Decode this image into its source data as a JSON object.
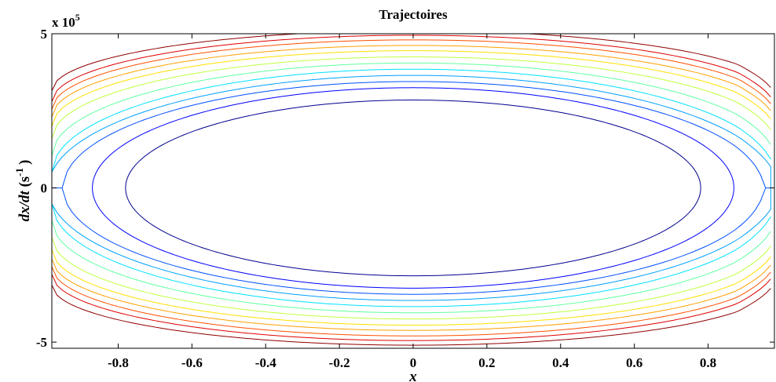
{
  "chart_data": {
    "type": "line",
    "title": "Trajectoires",
    "xlabel": "x",
    "ylabel": {
      "var": "dx/dt",
      "unit_open": " (s",
      "unit_exp": "-1",
      "unit_close": ")"
    },
    "y_multiplier": {
      "base": "x 10",
      "exp": "5"
    },
    "xlim": [
      -0.98,
      0.98
    ],
    "ylim": [
      -5.2,
      5.0
    ],
    "x_ticks": [
      {
        "value": -0.8,
        "label": "-0.8"
      },
      {
        "value": -0.6,
        "label": "-0.6"
      },
      {
        "value": -0.4,
        "label": "-0.4"
      },
      {
        "value": -0.2,
        "label": "-0.2"
      },
      {
        "value": 0,
        "label": "0"
      },
      {
        "value": 0.2,
        "label": "0.2"
      },
      {
        "value": 0.4,
        "label": "0.4"
      },
      {
        "value": 0.6,
        "label": "0.6"
      },
      {
        "value": 0.8,
        "label": "0.8"
      }
    ],
    "y_ticks": [
      {
        "value": 5,
        "label": "5"
      },
      {
        "value": 0,
        "label": "0"
      },
      {
        "value": -5,
        "label": "-5"
      }
    ],
    "grid": false,
    "legend": "none",
    "x_wall": 0.97,
    "curves_note_units": "y in units of 1e5 s^-1",
    "series": [
      {
        "type": "closed",
        "x_intercept": 0.78,
        "y_max": 2.85,
        "color": "#00008f"
      },
      {
        "type": "closed",
        "x_intercept": 0.87,
        "y_max": 3.25,
        "color": "#0000ff"
      },
      {
        "type": "open",
        "x_min": 0.95,
        "y_max": 3.45,
        "color": "#0050ff"
      },
      {
        "type": "open",
        "x_min": 0.99,
        "y_max": 3.65,
        "color": "#00a0ff"
      },
      {
        "type": "open",
        "y_edge": 0.5,
        "y_max": 3.85,
        "color": "#00e0ff"
      },
      {
        "type": "open",
        "y_edge": 1.05,
        "y_max": 4.05,
        "color": "#60ffa0"
      },
      {
        "type": "open",
        "y_edge": 1.6,
        "y_max": 4.25,
        "color": "#c0ff40"
      },
      {
        "type": "open",
        "y_edge": 2.0,
        "y_max": 4.45,
        "color": "#ffe000"
      },
      {
        "type": "open",
        "y_edge": 2.3,
        "y_max": 4.62,
        "color": "#ffa000"
      },
      {
        "type": "open",
        "y_edge": 2.55,
        "y_max": 4.8,
        "color": "#ff5000"
      },
      {
        "type": "open",
        "y_edge": 2.8,
        "y_max": 4.95,
        "color": "#df0000"
      },
      {
        "type": "open",
        "y_edge": 3.15,
        "y_max": 5.1,
        "color": "#8f0000"
      }
    ]
  }
}
